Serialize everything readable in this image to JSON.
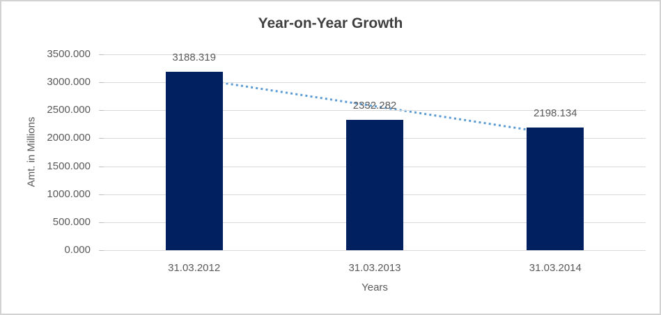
{
  "chart_data": {
    "type": "bar",
    "title": "Year-on-Year Growth",
    "xlabel": "Years",
    "ylabel": "Amt. in Millions",
    "categories": [
      "31.03.2012",
      "31.03.2013",
      "31.03.2014"
    ],
    "values": [
      3188.319,
      2332.282,
      2198.134
    ],
    "data_labels": [
      "3188.319",
      "2332.282",
      "2198.134"
    ],
    "ylim": [
      0,
      3500
    ],
    "ytick_step": 500,
    "ytick_labels": [
      "0.000",
      "500.000",
      "1000.000",
      "1500.000",
      "2000.000",
      "2500.000",
      "3000.000",
      "3500.000"
    ],
    "grid": true,
    "legend": "none",
    "trendline": {
      "type": "linear",
      "style": "dotted",
      "color": "#5b9bd5"
    },
    "colors": {
      "bar": "#002060",
      "gridline": "#d9d9d9",
      "tick": "#bfbfbf",
      "axis_text": "#595959",
      "title_text": "#404040",
      "frame_border": "#d2d2d2",
      "background": "#ffffff"
    }
  }
}
